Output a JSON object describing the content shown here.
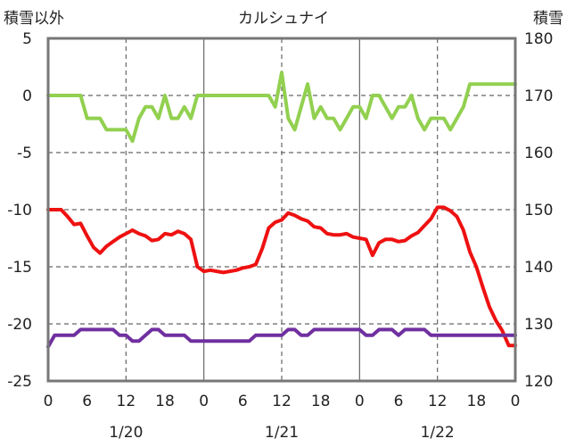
{
  "chart_data": {
    "type": "line",
    "title": "カルシュナイ",
    "left_axis_label": "積雪以外",
    "right_axis_label": "積雪",
    "left_ylim": [
      -25,
      5
    ],
    "left_yticks": [
      "5",
      "0",
      "-5",
      "-10",
      "-15",
      "-20",
      "-25"
    ],
    "right_ylim": [
      120,
      180
    ],
    "right_yticks": [
      "180",
      "170",
      "160",
      "150",
      "140",
      "130",
      "120"
    ],
    "x_range_hours": [
      0,
      72
    ],
    "x_tick_labels": [
      "0",
      "6",
      "12",
      "18",
      "0",
      "6",
      "12",
      "18",
      "0",
      "6",
      "12",
      "18",
      "0"
    ],
    "day_labels": [
      "1/20",
      "1/21",
      "1/22"
    ],
    "grid": true,
    "colors": {
      "green": "#92d050",
      "red": "#ee1111",
      "purple": "#7030a0",
      "axis": "#777777",
      "grid": "#666666"
    },
    "series": [
      {
        "axis": "left",
        "color": "#92d050",
        "x": [
          0,
          5,
          6,
          8,
          9,
          10,
          11,
          12,
          13,
          14,
          15,
          16,
          17,
          18,
          19,
          20,
          21,
          22,
          23,
          24,
          34,
          35,
          36,
          37,
          38,
          39,
          40,
          41,
          42,
          43,
          44,
          45,
          46,
          47,
          48,
          49,
          50,
          51,
          52,
          53,
          54,
          55,
          56,
          57,
          58,
          59,
          60,
          61,
          62,
          63,
          64,
          65,
          66,
          72
        ],
        "y": [
          0,
          0,
          -2,
          -2,
          -3,
          -3,
          -3,
          -3,
          -4,
          -2,
          -1,
          -1,
          -2,
          0,
          -2,
          -2,
          -1,
          -2,
          0,
          0,
          0,
          -1,
          2,
          -2,
          -3,
          -1,
          1,
          -2,
          -1,
          -2,
          -2,
          -3,
          -2,
          -1,
          -1,
          -2,
          0,
          0,
          -1,
          -2,
          -1,
          -1,
          0,
          -2,
          -3,
          -2,
          -2,
          -2,
          -3,
          -2,
          -1,
          1,
          1,
          1
        ]
      },
      {
        "axis": "left",
        "color": "#ee1111",
        "x": [
          0,
          1,
          2,
          3,
          4,
          5,
          6,
          7,
          8,
          9,
          10,
          11,
          12,
          13,
          14,
          15,
          16,
          17,
          18,
          19,
          20,
          21,
          22,
          23,
          24,
          25,
          26,
          27,
          28,
          29,
          30,
          31,
          32,
          33,
          34,
          35,
          36,
          37,
          38,
          39,
          40,
          41,
          42,
          43,
          44,
          45,
          46,
          47,
          48,
          49,
          50,
          51,
          52,
          53,
          54,
          55,
          56,
          57,
          58,
          59,
          60,
          61,
          62,
          63,
          64,
          65,
          66,
          67,
          68,
          69,
          70,
          71,
          72
        ],
        "y": [
          -10,
          -10,
          -10,
          -10.6,
          -11.3,
          -11.2,
          -12.3,
          -13.3,
          -13.8,
          -13.2,
          -12.8,
          -12.4,
          -12.1,
          -11.8,
          -12.1,
          -12.3,
          -12.7,
          -12.6,
          -12.1,
          -12.2,
          -11.9,
          -12.1,
          -12.6,
          -15.0,
          -15.4,
          -15.3,
          -15.4,
          -15.5,
          -15.4,
          -15.3,
          -15.1,
          -15.0,
          -14.8,
          -13.4,
          -11.6,
          -11.1,
          -10.9,
          -10.3,
          -10.5,
          -10.8,
          -11.0,
          -11.5,
          -11.6,
          -12.1,
          -12.2,
          -12.2,
          -12.1,
          -12.4,
          -12.5,
          -12.6,
          -14.0,
          -12.9,
          -12.6,
          -12.6,
          -12.8,
          -12.7,
          -12.3,
          -12.0,
          -11.4,
          -10.8,
          -9.8,
          -9.8,
          -10.1,
          -10.6,
          -11.8,
          -13.7,
          -15.0,
          -16.8,
          -18.5,
          -19.7,
          -20.6,
          -21.9,
          -21.9
        ]
      },
      {
        "axis": "left",
        "color": "#7030a0",
        "x": [
          0,
          1,
          4,
          5,
          10,
          11,
          12,
          13,
          14,
          15,
          16,
          17,
          18,
          19,
          20,
          21,
          22,
          23,
          31,
          32,
          33,
          34,
          35,
          36,
          37,
          38,
          39,
          40,
          41,
          42,
          43,
          44,
          45,
          46,
          47,
          48,
          49,
          50,
          51,
          52,
          53,
          54,
          55,
          56,
          57,
          58,
          59,
          60,
          61,
          62,
          63,
          64,
          65,
          66,
          67,
          68,
          69,
          70,
          71,
          72
        ],
        "y": [
          -22,
          -21,
          -21,
          -20.5,
          -20.5,
          -21,
          -21,
          -21.5,
          -21.5,
          -21,
          -20.5,
          -20.5,
          -21,
          -21,
          -21,
          -21,
          -21.5,
          -21.5,
          -21.5,
          -21,
          -21,
          -21,
          -21,
          -21,
          -20.5,
          -20.5,
          -21,
          -21,
          -20.5,
          -20.5,
          -20.5,
          -20.5,
          -20.5,
          -20.5,
          -20.5,
          -20.5,
          -21,
          -21,
          -20.5,
          -20.5,
          -20.5,
          -21,
          -20.5,
          -20.5,
          -20.5,
          -20.5,
          -21,
          -21,
          -21,
          -21,
          -21,
          -21,
          -21,
          -21,
          -21,
          -21,
          -21,
          -21,
          -21,
          -21
        ]
      }
    ]
  }
}
